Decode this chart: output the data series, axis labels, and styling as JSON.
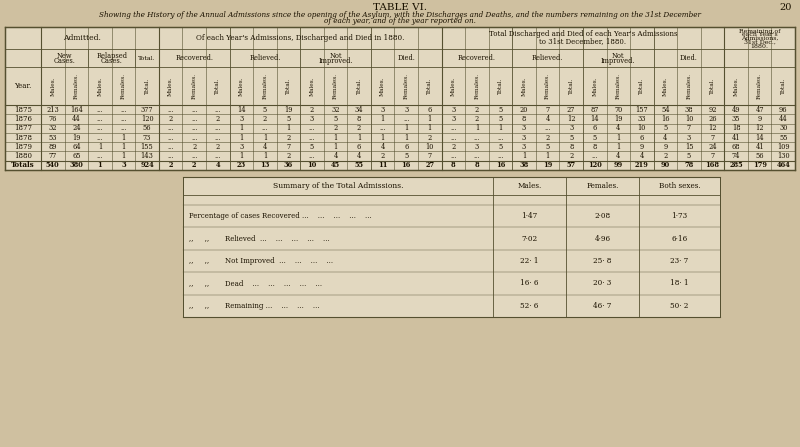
{
  "title": "TABLE VI.",
  "subtitle_line1": "Showing the History of the Annual Admissions since the opening of the Asylum, with the Discharges and Deaths, and the numbers remaining on the 31st December",
  "subtitle_line2": "of each year, and of the year reported on.",
  "bg_color": "#cfc0a0",
  "table_bg": "#e2d8c0",
  "page_num": "20",
  "data": {
    "1875": [
      "213",
      "164",
      "...",
      "...",
      "377",
      "...",
      "...",
      "...",
      "14",
      "5",
      "19",
      "2",
      "32",
      "34",
      "3",
      "3",
      "6",
      "3",
      "2",
      "5",
      "20",
      "7",
      "27",
      "87",
      "70",
      "157",
      "54",
      "38",
      "92",
      "49",
      "47",
      "96"
    ],
    "1876": [
      "76",
      "44",
      "...",
      "...",
      "120",
      "2",
      "...",
      "2",
      "3",
      "2",
      "5",
      "3",
      "5",
      "8",
      "1",
      "...",
      "1",
      "3",
      "2",
      "5",
      "8",
      "4",
      "12",
      "14",
      "19",
      "33",
      "16",
      "10",
      "26",
      "35",
      "9",
      "44"
    ],
    "1877": [
      "32",
      "24",
      "...",
      "...",
      "56",
      "...",
      "...",
      "...",
      "1",
      "...",
      "1",
      "...",
      "2",
      "2",
      "...",
      "1",
      "1",
      "...",
      "1",
      "1",
      "3",
      "...",
      "3",
      "6",
      "4",
      "10",
      "5",
      "7",
      "12",
      "18",
      "12",
      "30"
    ],
    "1878": [
      "53",
      "19",
      "...",
      "1",
      "73",
      "...",
      "...",
      "...",
      "1",
      "1",
      "2",
      "...",
      "1",
      "1",
      "1",
      "1",
      "2",
      "...",
      "...",
      "...",
      "3",
      "2",
      "5",
      "5",
      "1",
      "6",
      "4",
      "3",
      "7",
      "41",
      "14",
      "55"
    ],
    "1879": [
      "89",
      "64",
      "1",
      "1",
      "155",
      "...",
      "2",
      "2",
      "3",
      "4",
      "7",
      "5",
      "1",
      "6",
      "4",
      "6",
      "10",
      "2",
      "3",
      "5",
      "3",
      "5",
      "8",
      "8",
      "1",
      "9",
      "9",
      "15",
      "24",
      "68",
      "41",
      "109"
    ],
    "1880": [
      "77",
      "65",
      "...",
      "1",
      "143",
      "...",
      "...",
      "...",
      "1",
      "1",
      "2",
      "...",
      "4",
      "4",
      "2",
      "5",
      "7",
      "...",
      "...",
      "...",
      "1",
      "1",
      "2",
      "...",
      "4",
      "4",
      "2",
      "5",
      "7",
      "74",
      "56",
      "130"
    ],
    "Totals": [
      "540",
      "380",
      "1",
      "3",
      "924",
      "2",
      "2",
      "4",
      "23",
      "13",
      "36",
      "10",
      "45",
      "55",
      "11",
      "16",
      "27",
      "8",
      "8",
      "16",
      "38",
      "19",
      "57",
      "120",
      "99",
      "219",
      "90",
      "78",
      "168",
      "285",
      "179",
      "464"
    ]
  },
  "summary_rows": [
    {
      "label": "Percentage of cases Recovered ...    ...    ...    ...    ...",
      "values": [
        "1·47",
        "2·08",
        "1·73"
      ]
    },
    {
      "label": ",,     ,,       Relieved  ...    ...    ...    ...    ...",
      "values": [
        "7·02",
        "4·96",
        "6·16"
      ]
    },
    {
      "label": ",,     ,,       Not Improved  ...    ...    ...    ...",
      "values": [
        "22· 1",
        "25· 8",
        "23· 7"
      ]
    },
    {
      "label": ",,     ,,       Dead    ...    ...    ...    ...    ...",
      "values": [
        "16· 6",
        "20· 3",
        "18· 1"
      ]
    },
    {
      "label": ",,     ,,       Remaining ...    ...    ...    ...",
      "values": [
        "52· 6",
        "46· 7",
        "50· 2"
      ]
    }
  ]
}
